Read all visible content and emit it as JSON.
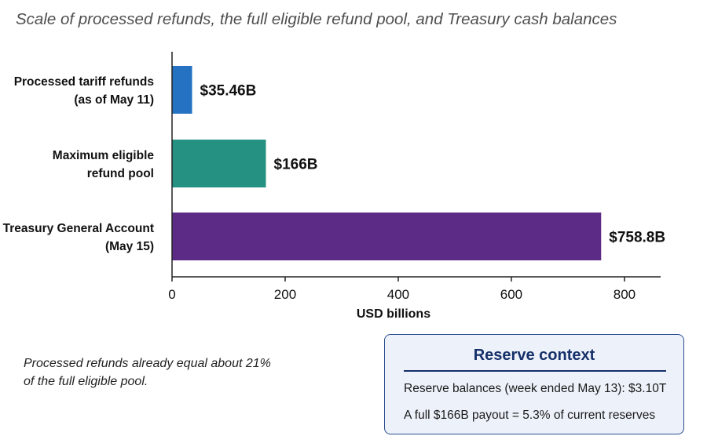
{
  "title": "",
  "subtitle": "Scale of processed refunds, the full eligible refund pool, and Treasury cash balances",
  "chart_data": {
    "type": "bar",
    "orientation": "horizontal",
    "categories": [
      [
        "Processed tariff refunds",
        "(as of May 11)"
      ],
      [
        "Maximum eligible",
        "refund pool"
      ],
      [
        "Treasury General Account",
        "(May 15)"
      ]
    ],
    "values": [
      35.46,
      166,
      758.8
    ],
    "data_labels": [
      "$35.46B",
      "$166B",
      "$758.8B"
    ],
    "colors": [
      "#2672c2",
      "#259183",
      "#5b2b86"
    ],
    "xlabel": "USD billions",
    "ylabel": "",
    "xlim": [
      0,
      864
    ],
    "xticks": [
      0,
      200,
      400,
      600,
      800
    ],
    "grid": false
  },
  "note": {
    "lines": [
      "Processed refunds already equal about 21%",
      "of the full eligible pool."
    ]
  },
  "reserve_context": {
    "title": "Reserve context",
    "line1": "Reserve balances (week ended May 13): $3.10T",
    "line2": "A full $166B payout = 5.3% of current reserves"
  }
}
